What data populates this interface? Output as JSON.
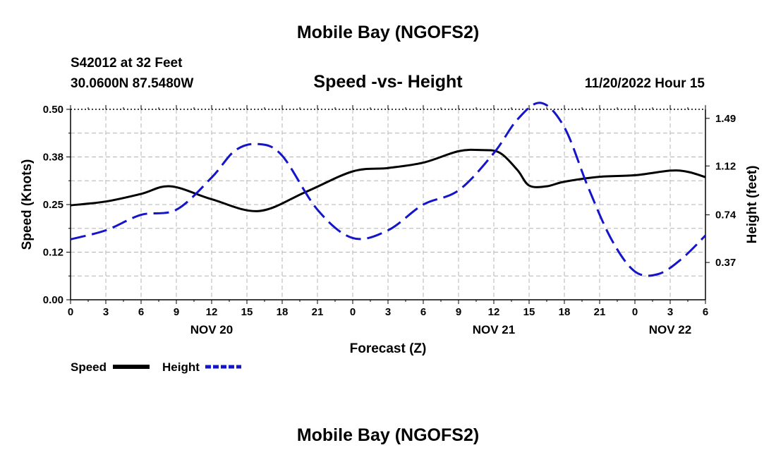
{
  "header": {
    "title": "Mobile Bay (NGOFS2)",
    "station": "S42012 at 32 Feet",
    "coords": "30.0600N  87.5480W",
    "datetime": "11/20/2022 Hour 15"
  },
  "footer": {
    "title": "Mobile Bay (NGOFS2)"
  },
  "colors": {
    "speed": "#000000",
    "height": "#1414c8",
    "grid": "#b4b4b4"
  },
  "chart_data": {
    "type": "line",
    "title": "Speed -vs- Height",
    "xlabel": "Forecast (Z)",
    "ylabel": "Speed (Knots)",
    "y2label": "Height (feet)",
    "xlim": [
      0,
      54
    ],
    "ylim": [
      0,
      0.5
    ],
    "y2lim": [
      0.08,
      1.56
    ],
    "x_ticks": [
      0,
      3,
      6,
      9,
      12,
      15,
      18,
      21,
      24,
      27,
      30,
      33,
      36,
      39,
      42,
      45,
      48,
      51,
      54
    ],
    "x_tick_labels": [
      "0",
      "3",
      "6",
      "9",
      "12",
      "15",
      "18",
      "21",
      "0",
      "3",
      "6",
      "9",
      "12",
      "15",
      "18",
      "21",
      "0",
      "3",
      "6"
    ],
    "y_ticks": [
      0,
      0.125,
      0.25,
      0.375,
      0.5
    ],
    "y_tick_labels": [
      "0.00",
      "0.12",
      "0.25",
      "0.38",
      "0.50"
    ],
    "y2_ticks": [
      0.37,
      0.74,
      1.12,
      1.49
    ],
    "y2_tick_labels": [
      "0.37",
      "0.74",
      "1.12",
      "1.49"
    ],
    "dates": [
      {
        "x": 12,
        "label": "NOV 20"
      },
      {
        "x": 36,
        "label": "NOV 21"
      },
      {
        "x": 51,
        "label": "NOV 22"
      }
    ],
    "legend": [
      {
        "name": "Speed",
        "style": "solid"
      },
      {
        "name": "Height",
        "style": "dashed"
      }
    ],
    "series": [
      {
        "name": "Speed",
        "axis": "left",
        "x": [
          0,
          3,
          6,
          8.5,
          12,
          16,
          20,
          24,
          27,
          30,
          33,
          35,
          36.5,
          38,
          39,
          40.5,
          42,
          45,
          48,
          51,
          52.5,
          54
        ],
        "y": [
          0.248,
          0.258,
          0.278,
          0.298,
          0.264,
          0.233,
          0.283,
          0.337,
          0.346,
          0.36,
          0.39,
          0.393,
          0.386,
          0.341,
          0.3,
          0.298,
          0.31,
          0.323,
          0.327,
          0.339,
          0.336,
          0.322
        ]
      },
      {
        "name": "Height",
        "axis": "right",
        "x": [
          0,
          3,
          6,
          9,
          12,
          14,
          16,
          18,
          21,
          24,
          27,
          30,
          33,
          36,
          38,
          40,
          42,
          44,
          46,
          48,
          50,
          52,
          54
        ],
        "y": [
          0.55,
          0.62,
          0.74,
          0.78,
          1.03,
          1.24,
          1.29,
          1.2,
          0.78,
          0.56,
          0.62,
          0.82,
          0.93,
          1.22,
          1.48,
          1.61,
          1.42,
          0.96,
          0.55,
          0.3,
          0.28,
          0.4,
          0.58
        ]
      }
    ]
  }
}
